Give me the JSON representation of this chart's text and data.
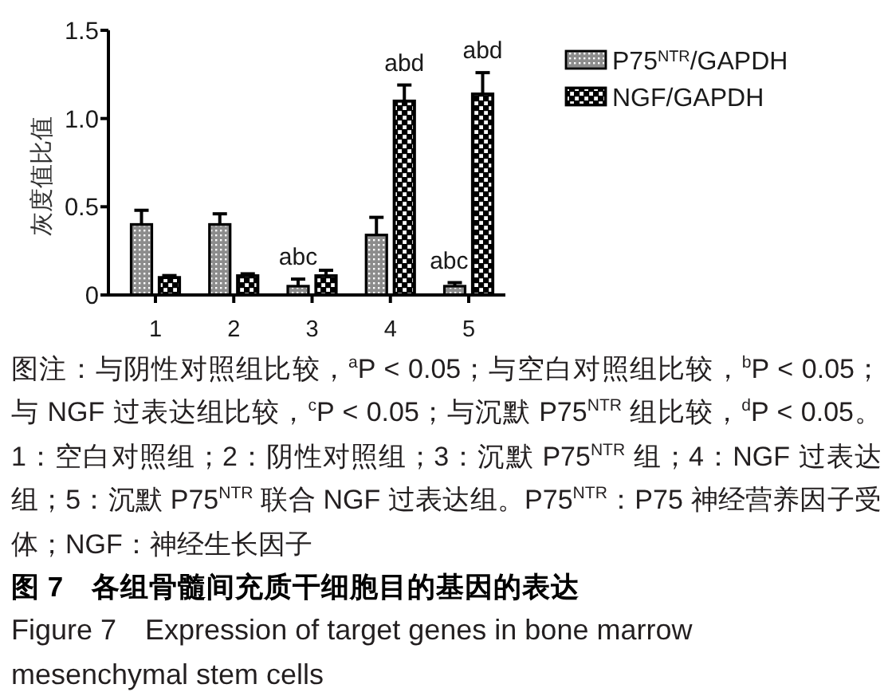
{
  "chart_data": {
    "type": "bar",
    "title": "图 7　各组骨髓间充质干细胞目的基因的表达",
    "subtitle": "Figure 7　Expression of target genes in bone marrow mesenchymal stem cells",
    "ylabel": "灰度值比值",
    "categories": [
      "1",
      "2",
      "3",
      "4",
      "5"
    ],
    "series": [
      {
        "name": "P75$^{NTR}$/GAPDH",
        "color": "#8c8c8c",
        "values": [
          0.4,
          0.4,
          0.05,
          0.34,
          0.05
        ],
        "errors": [
          [
            0.4,
            0.48
          ],
          [
            0.4,
            0.46
          ],
          [
            0.05,
            0.09
          ],
          [
            0.34,
            0.44
          ],
          [
            0.05,
            0.07
          ]
        ],
        "value_labels": [
          null,
          null,
          "abc",
          null,
          "abc"
        ]
      },
      {
        "name": "NGF/GAPDH",
        "color": "#000000",
        "values": [
          0.1,
          0.11,
          0.11,
          1.1,
          1.14
        ],
        "errors": [
          [
            0.1,
            0.11
          ],
          [
            0.11,
            0.12
          ],
          [
            0.11,
            0.14
          ],
          [
            1.1,
            1.19
          ],
          [
            1.14,
            1.26
          ]
        ],
        "value_labels": [
          null,
          null,
          null,
          "abd",
          "abd"
        ]
      }
    ],
    "ylim": [
      0,
      1.5
    ],
    "yticks": [
      0,
      0.5,
      {
        "value": 1,
        "label": "1.0"
      },
      1.5
    ],
    "legend": "top right",
    "annotations": [
      "图注：与阴性对照组比较，$^{a}$P < 0.05；与空白对照组比较，$^{b}$P < 0.05；与 NGF 过表达组比较，$^{c}$P < 0.05；与沉默 P75$^{NTR}$ 组比较，$^{d}$P < 0.05。",
      "1：空白对照组；2：阴性对照组；3：沉默 P75$^{NTR}$ 组；4：NGF 过表达组；5：沉默 P75$^{NTR}$ 联合 NGF 过表达组。P75$^{NTR}$：P75 神经营养因子受体；NGF：神经生长因子"
    ]
  }
}
